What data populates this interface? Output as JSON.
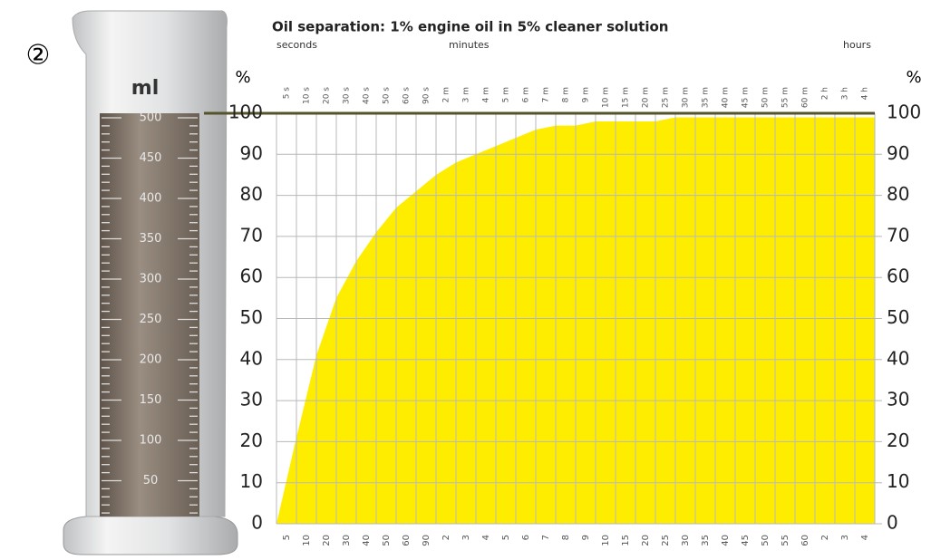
{
  "marker": "②",
  "cylinder": {
    "unit": "ml",
    "ticks": [
      50,
      100,
      150,
      200,
      250,
      300,
      350,
      400,
      450,
      500
    ]
  },
  "chart_data": {
    "type": "area",
    "title": "Oil separation:  1% engine oil in 5% cleaner solution",
    "x_groups": [
      "seconds",
      "minutes",
      "hours"
    ],
    "y_label": "%",
    "categories": [
      "5 s",
      "10 s",
      "20 s",
      "30 s",
      "40 s",
      "50 s",
      "60 s",
      "90 s",
      "2 m",
      "3 m",
      "4 m",
      "5 m",
      "6 m",
      "7 m",
      "8 m",
      "9 m",
      "10 m",
      "15 m",
      "20 m",
      "25 m",
      "30 m",
      "35 m",
      "40 m",
      "45 m",
      "50 m",
      "55 m",
      "60 m",
      "2 h",
      "3 h",
      "4 h"
    ],
    "bottom_labels": [
      "5",
      "10",
      "20",
      "30",
      "40",
      "50",
      "60",
      "90",
      "2",
      "3",
      "4",
      "5",
      "6",
      "7",
      "8",
      "9",
      "10",
      "15",
      "20",
      "25",
      "30",
      "35",
      "40",
      "45",
      "50",
      "55",
      "60",
      "2",
      "3",
      "4"
    ],
    "values": [
      21,
      41,
      55,
      64,
      71,
      77,
      81,
      85,
      88,
      90,
      92,
      94,
      96,
      97,
      97,
      98,
      98,
      98,
      98,
      99,
      99,
      99,
      99,
      99,
      99,
      99,
      99,
      99,
      99,
      99
    ],
    "color": "#ffed00",
    "ylim": [
      0,
      100
    ],
    "yticks": [
      0,
      10,
      20,
      30,
      40,
      50,
      60,
      70,
      80,
      90,
      100
    ],
    "grid": true
  }
}
